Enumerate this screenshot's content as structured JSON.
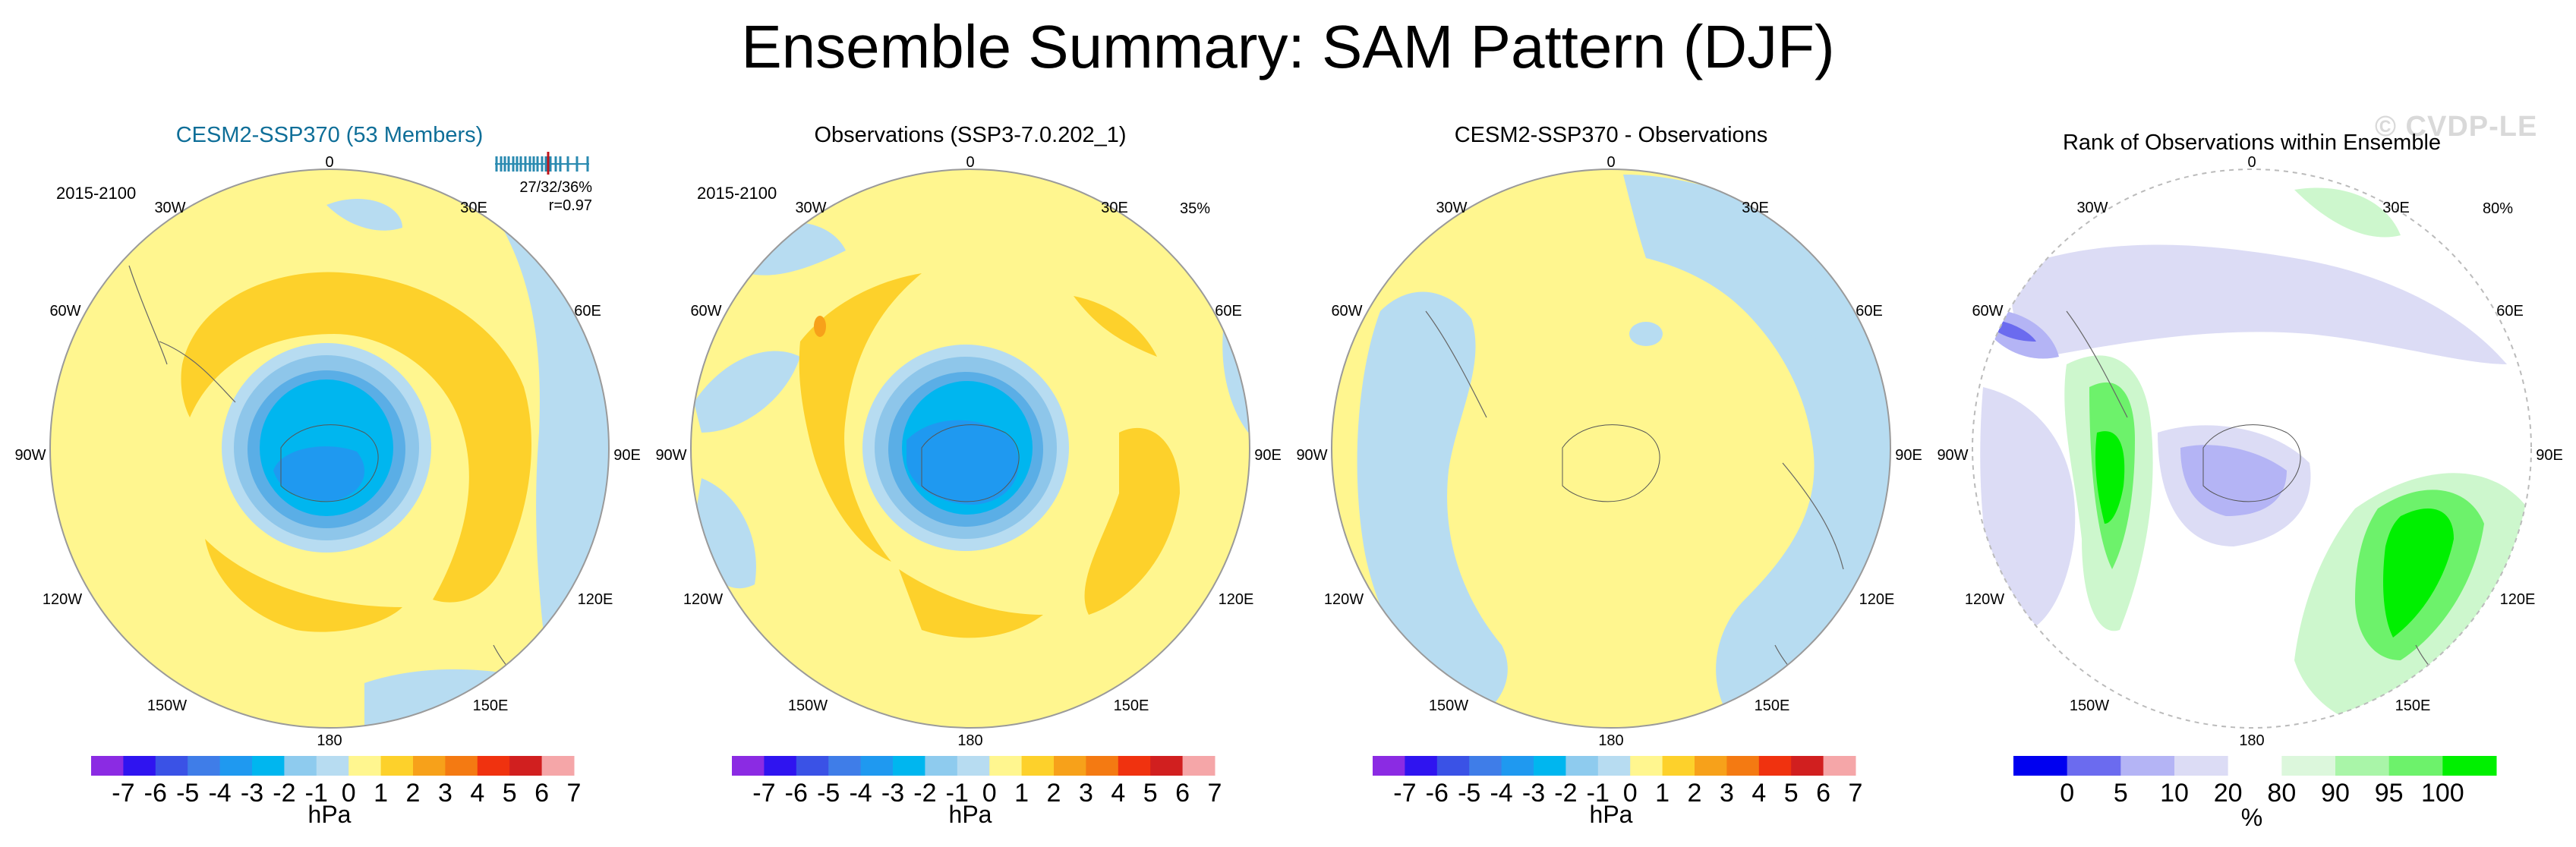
{
  "title": "Ensemble Summary: SAM Pattern (DJF)",
  "watermark": "© CVDP-LE",
  "colors": {
    "ensemble_title": "#0e6e98",
    "positive_1": "#fff68f",
    "positive_2": "#fdd12b",
    "positive_3": "#f7a11a",
    "negative_1": "#b7dcf1",
    "negative_2": "#8ec6ea",
    "negative_3": "#5aaee6",
    "negative_4": "#00a7ef",
    "negative_5": "#188ae6",
    "rank_high": "#00f000",
    "rank_mid": "#6df26b",
    "rank_low_green": "#cdf7cd",
    "rank_blue_light": "#dcdcf5",
    "rank_blue_mid": "#9f9ff0",
    "rank_blue_dark": "#5050e6"
  },
  "lon_labels": [
    "0",
    "30E",
    "60E",
    "90E",
    "120E",
    "150E",
    "180",
    "150W",
    "120W",
    "90W",
    "60W",
    "30W"
  ],
  "panels": [
    {
      "title": "CESM2-SSP370 (53 Members)",
      "period": "2015-2100",
      "stats_line1": "27/32/36%",
      "stats_line2": "r=0.97"
    },
    {
      "title": "Observations (SSP3-7.0.202_1)",
      "period": "2015-2100",
      "percent": "35%"
    },
    {
      "title": "CESM2-SSP370 - Observations"
    },
    {
      "title": "Rank of Observations within Ensemble",
      "percent": "80%"
    }
  ],
  "chart_data": [
    {
      "type": "heatmap",
      "title": "CESM2-SSP370 (53 Members)",
      "projection": "south polar stereographic",
      "units": "hPa",
      "colorbar_ticks": [
        "-7",
        "-6",
        "-5",
        "-4",
        "-3",
        "-2",
        "-1",
        "0",
        "1",
        "2",
        "3",
        "4",
        "5",
        "6",
        "7"
      ],
      "colorbar_colors": [
        "#8b2be3",
        "#2f14f0",
        "#3a52e6",
        "#3f7de8",
        "#1f99f0",
        "#00b6ef",
        "#8ecbee",
        "#b7dcf1",
        "#fff68f",
        "#fdd12b",
        "#f7a11a",
        "#f47a12",
        "#f0320f",
        "#d11f1f",
        "#f5a6a8"
      ]
    },
    {
      "type": "heatmap",
      "title": "Observations (SSP3-7.0.202_1)",
      "projection": "south polar stereographic",
      "units": "hPa",
      "colorbar_ticks": [
        "-7",
        "-6",
        "-5",
        "-4",
        "-3",
        "-2",
        "-1",
        "0",
        "1",
        "2",
        "3",
        "4",
        "5",
        "6",
        "7"
      ]
    },
    {
      "type": "heatmap",
      "title": "CESM2-SSP370 - Observations",
      "projection": "south polar stereographic",
      "units": "hPa",
      "colorbar_ticks": [
        "-7",
        "-6",
        "-5",
        "-4",
        "-3",
        "-2",
        "-1",
        "0",
        "1",
        "2",
        "3",
        "4",
        "5",
        "6",
        "7"
      ]
    },
    {
      "type": "heatmap",
      "title": "Rank of Observations within Ensemble",
      "projection": "south polar stereographic",
      "units": "%",
      "colorbar_ticks": [
        "0",
        "5",
        "10",
        "20",
        "80",
        "90",
        "95",
        "100"
      ],
      "colorbar_colors": [
        "#0000f0",
        "#6b6bef",
        "#b4b4f5",
        "#dcdcf5",
        "#ffffff",
        "#dcf7dc",
        "#a9f5a8",
        "#6df26b",
        "#00f000"
      ]
    }
  ]
}
